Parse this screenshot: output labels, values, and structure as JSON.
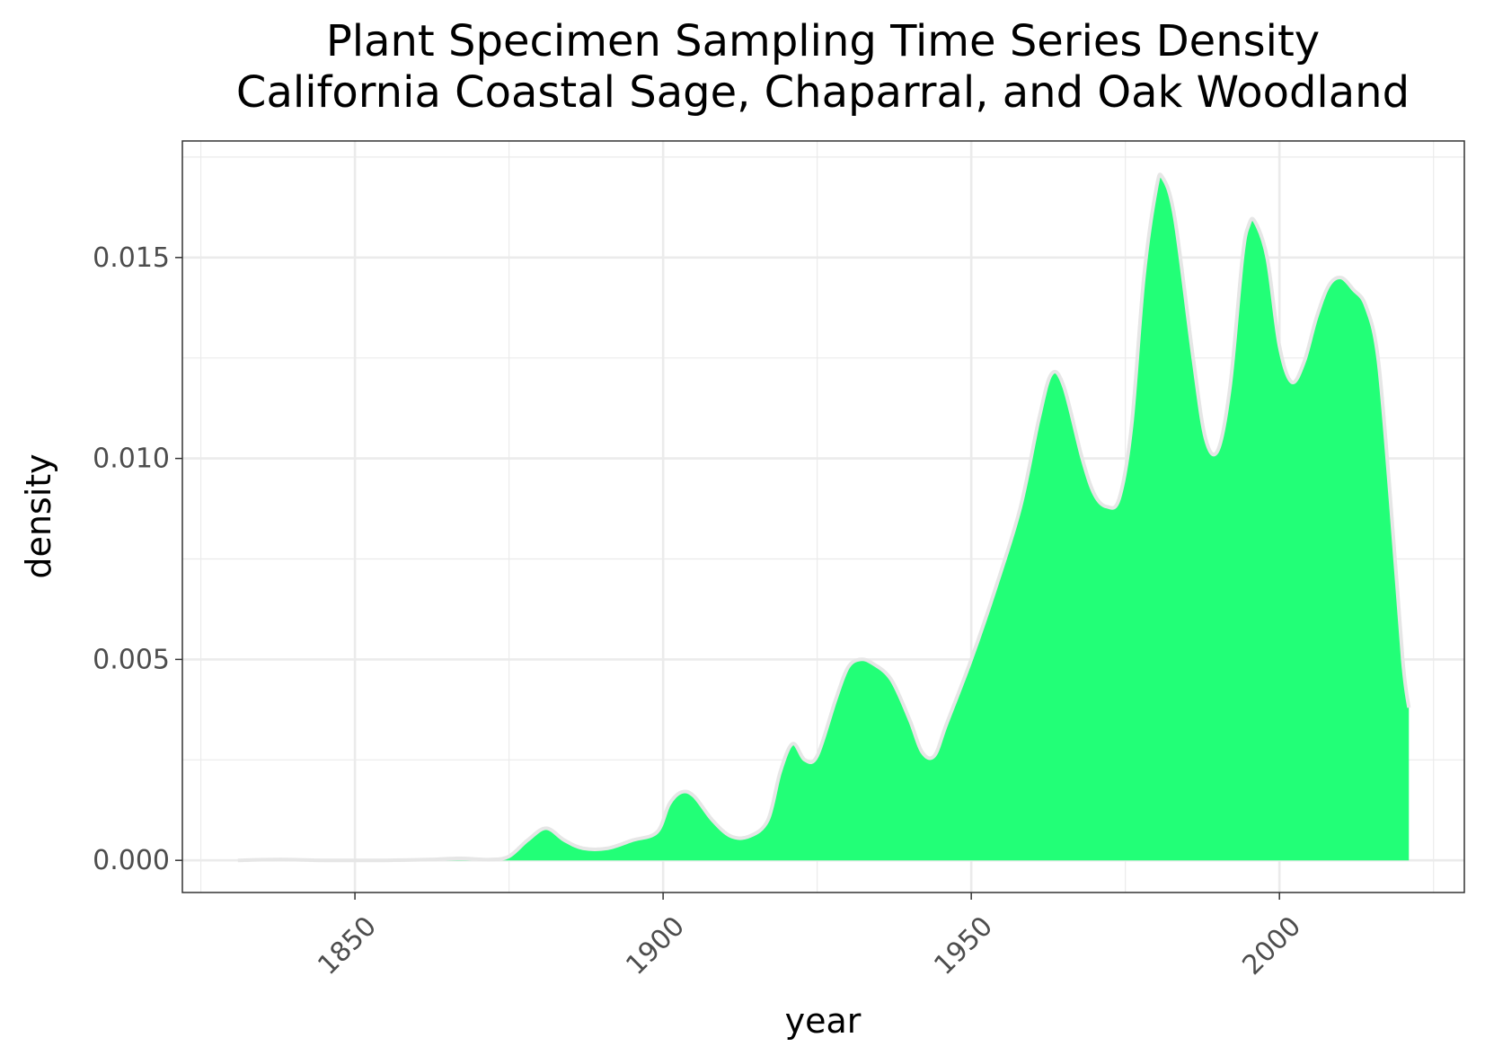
{
  "chart_data": {
    "type": "area",
    "title": "Plant Specimen Sampling Time Series Density",
    "subtitle": "California Coastal Sage, Chaparral, and Oak Woodland",
    "xlabel": "year",
    "ylabel": "density",
    "xlim": [
      1822,
      2030
    ],
    "ylim": [
      -0.0008,
      0.0179
    ],
    "x_ticks": [
      1850,
      1900,
      1950,
      2000
    ],
    "x_tick_labels": [
      "1850",
      "1900",
      "1950",
      "2000"
    ],
    "y_ticks": [
      0.0,
      0.005,
      0.01,
      0.015
    ],
    "y_tick_labels": [
      "0.000",
      "0.005",
      "0.010",
      "0.015"
    ],
    "x_tick_label_rotation_deg": -45,
    "grid": true,
    "legend": "none",
    "fill_color": "#22ff77",
    "line_color": "#e6e6e6",
    "series": [
      {
        "values": [
          [
            1831,
            0.0
          ],
          [
            1838,
            2e-05
          ],
          [
            1845,
            0.0
          ],
          [
            1855,
            0.0
          ],
          [
            1862,
            2e-05
          ],
          [
            1867,
            5e-05
          ],
          [
            1872,
            2e-05
          ],
          [
            1875,
            0.0001
          ],
          [
            1878,
            0.0005
          ],
          [
            1881,
            0.0008
          ],
          [
            1884,
            0.0005
          ],
          [
            1887,
            0.0003
          ],
          [
            1891,
            0.0003
          ],
          [
            1895,
            0.0005
          ],
          [
            1899,
            0.0007
          ],
          [
            1901,
            0.0014
          ],
          [
            1903,
            0.0017
          ],
          [
            1905,
            0.0016
          ],
          [
            1908,
            0.001
          ],
          [
            1911,
            0.0006
          ],
          [
            1914,
            0.0006
          ],
          [
            1917,
            0.001
          ],
          [
            1919,
            0.0022
          ],
          [
            1921,
            0.0029
          ],
          [
            1923,
            0.0025
          ],
          [
            1925,
            0.0026
          ],
          [
            1928,
            0.004
          ],
          [
            1930,
            0.0048
          ],
          [
            1932,
            0.005
          ],
          [
            1934,
            0.0049
          ],
          [
            1937,
            0.0045
          ],
          [
            1940,
            0.0035
          ],
          [
            1942,
            0.0027
          ],
          [
            1944,
            0.0026
          ],
          [
            1946,
            0.0034
          ],
          [
            1950,
            0.005
          ],
          [
            1954,
            0.0068
          ],
          [
            1958,
            0.0088
          ],
          [
            1961,
            0.011
          ],
          [
            1963,
            0.0121
          ],
          [
            1965,
            0.0118
          ],
          [
            1968,
            0.01
          ],
          [
            1970,
            0.0091
          ],
          [
            1972,
            0.0088
          ],
          [
            1974,
            0.009
          ],
          [
            1976,
            0.0108
          ],
          [
            1978,
            0.0145
          ],
          [
            1980,
            0.0167
          ],
          [
            1981,
            0.017
          ],
          [
            1983,
            0.016
          ],
          [
            1986,
            0.0125
          ],
          [
            1988,
            0.0105
          ],
          [
            1990,
            0.0102
          ],
          [
            1992,
            0.0118
          ],
          [
            1994,
            0.015
          ],
          [
            1995,
            0.0158
          ],
          [
            1996,
            0.0159
          ],
          [
            1998,
            0.015
          ],
          [
            2000,
            0.0128
          ],
          [
            2002,
            0.0119
          ],
          [
            2004,
            0.0124
          ],
          [
            2006,
            0.0135
          ],
          [
            2008,
            0.0143
          ],
          [
            2010,
            0.0145
          ],
          [
            2012,
            0.0142
          ],
          [
            2014,
            0.0138
          ],
          [
            2016,
            0.0125
          ],
          [
            2018,
            0.009
          ],
          [
            2020,
            0.005
          ],
          [
            2021,
            0.0038
          ]
        ]
      }
    ]
  }
}
